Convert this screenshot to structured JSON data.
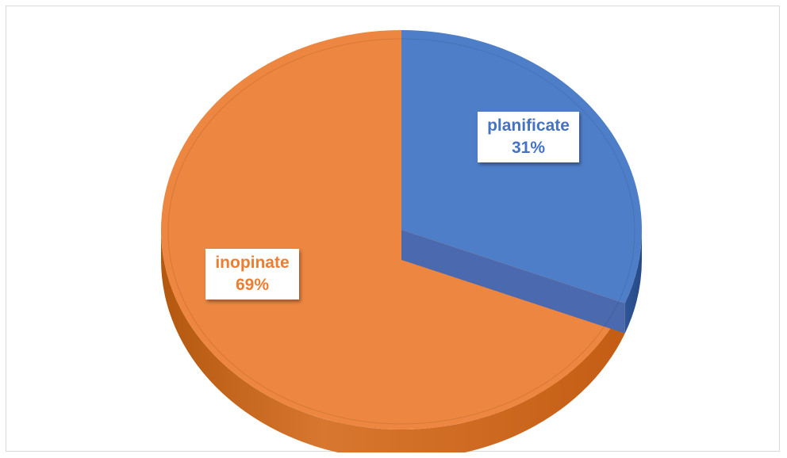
{
  "chart_data": {
    "type": "pie",
    "style": "3d",
    "categories": [
      "planificate",
      "inopinate"
    ],
    "values": [
      31,
      69
    ],
    "percent_labels": [
      "31%",
      "69%"
    ],
    "colors": [
      "#4f7ec9",
      "#ed8640"
    ],
    "side_colors": [
      "#2f5597",
      "#c55a11"
    ],
    "title": "",
    "legend": "none"
  }
}
